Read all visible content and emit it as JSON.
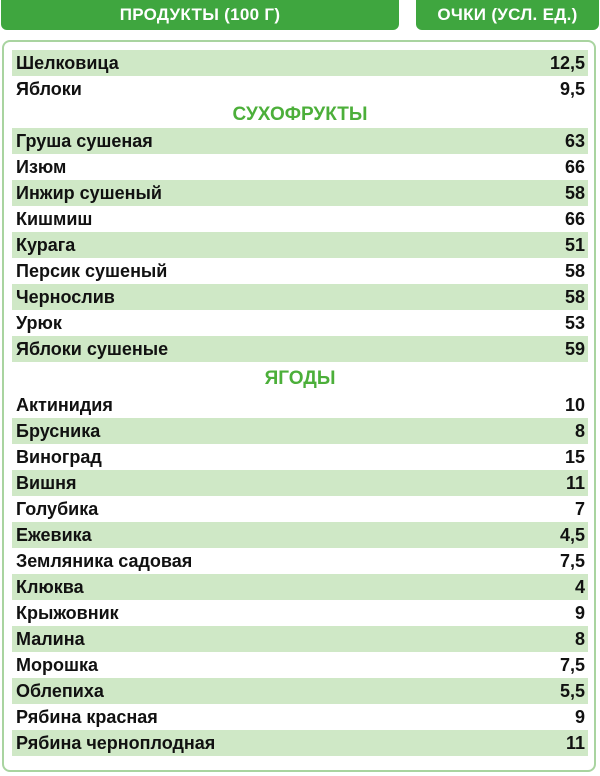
{
  "header": {
    "col_product": "ПРОДУКТЫ (100 Г)",
    "col_points": "ОЧКИ (УСЛ. ЕД.)"
  },
  "fruits": [
    {
      "name": "Шелковица",
      "value": "12,5"
    },
    {
      "name": "Яблоки",
      "value": "9,5"
    }
  ],
  "dried_title": "СУХОФРУКТЫ",
  "dried": [
    {
      "name": "Груша сушеная",
      "value": "63"
    },
    {
      "name": "Изюм",
      "value": "66"
    },
    {
      "name": "Инжир сушеный",
      "value": "58"
    },
    {
      "name": "Кишмиш",
      "value": "66"
    },
    {
      "name": "Курага",
      "value": "51"
    },
    {
      "name": "Персик сушеный",
      "value": "58"
    },
    {
      "name": "Чернослив",
      "value": "58"
    },
    {
      "name": "Урюк",
      "value": "53"
    },
    {
      "name": "Яблоки сушеные",
      "value": "59"
    }
  ],
  "berries_title": "ЯГОДЫ",
  "berries": [
    {
      "name": "Актинидия",
      "value": "10"
    },
    {
      "name": "Брусника",
      "value": "8"
    },
    {
      "name": "Виноград",
      "value": "15"
    },
    {
      "name": "Вишня",
      "value": "11"
    },
    {
      "name": "Голубика",
      "value": "7"
    },
    {
      "name": "Ежевика",
      "value": "4,5"
    },
    {
      "name": "Земляника садовая",
      "value": "7,5"
    },
    {
      "name": "Клюква",
      "value": "4"
    },
    {
      "name": "Крыжовник",
      "value": "9"
    },
    {
      "name": "Малина",
      "value": "8"
    },
    {
      "name": "Морошка",
      "value": "7,5"
    },
    {
      "name": "Облепиха",
      "value": "5,5"
    },
    {
      "name": "Рябина красная",
      "value": "9"
    },
    {
      "name": "Рябина черноплодная",
      "value": "11"
    }
  ],
  "colors": {
    "header_bg": "#3fa63f",
    "row_shade": "#cfe8c6",
    "section_title": "#4caf3a",
    "border": "#a9d4a0"
  }
}
